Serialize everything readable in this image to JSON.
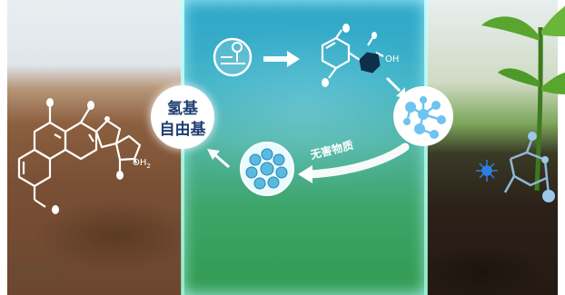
{
  "panels": {
    "left": "soil-with-molecule",
    "center": "transformation-cycle",
    "right": "healthy-soil-with-plant"
  },
  "badge": {
    "line1": "氢基",
    "line2": "自由基"
  },
  "cycle": {
    "arrow_label": "无害物质"
  },
  "molecule_labels": {
    "left_substituent": "OH",
    "left_subscript": "2",
    "top_substituent": "OH"
  },
  "colors": {
    "accent": "#1c3d6e",
    "glow": "#c8ffff",
    "molecule_node": "#6ec3ef"
  },
  "icons": [
    "reaction-vessel-icon",
    "benzene-molecule-icon",
    "molecular-network-icon",
    "microbe-cluster-icon",
    "sprout-icon"
  ]
}
